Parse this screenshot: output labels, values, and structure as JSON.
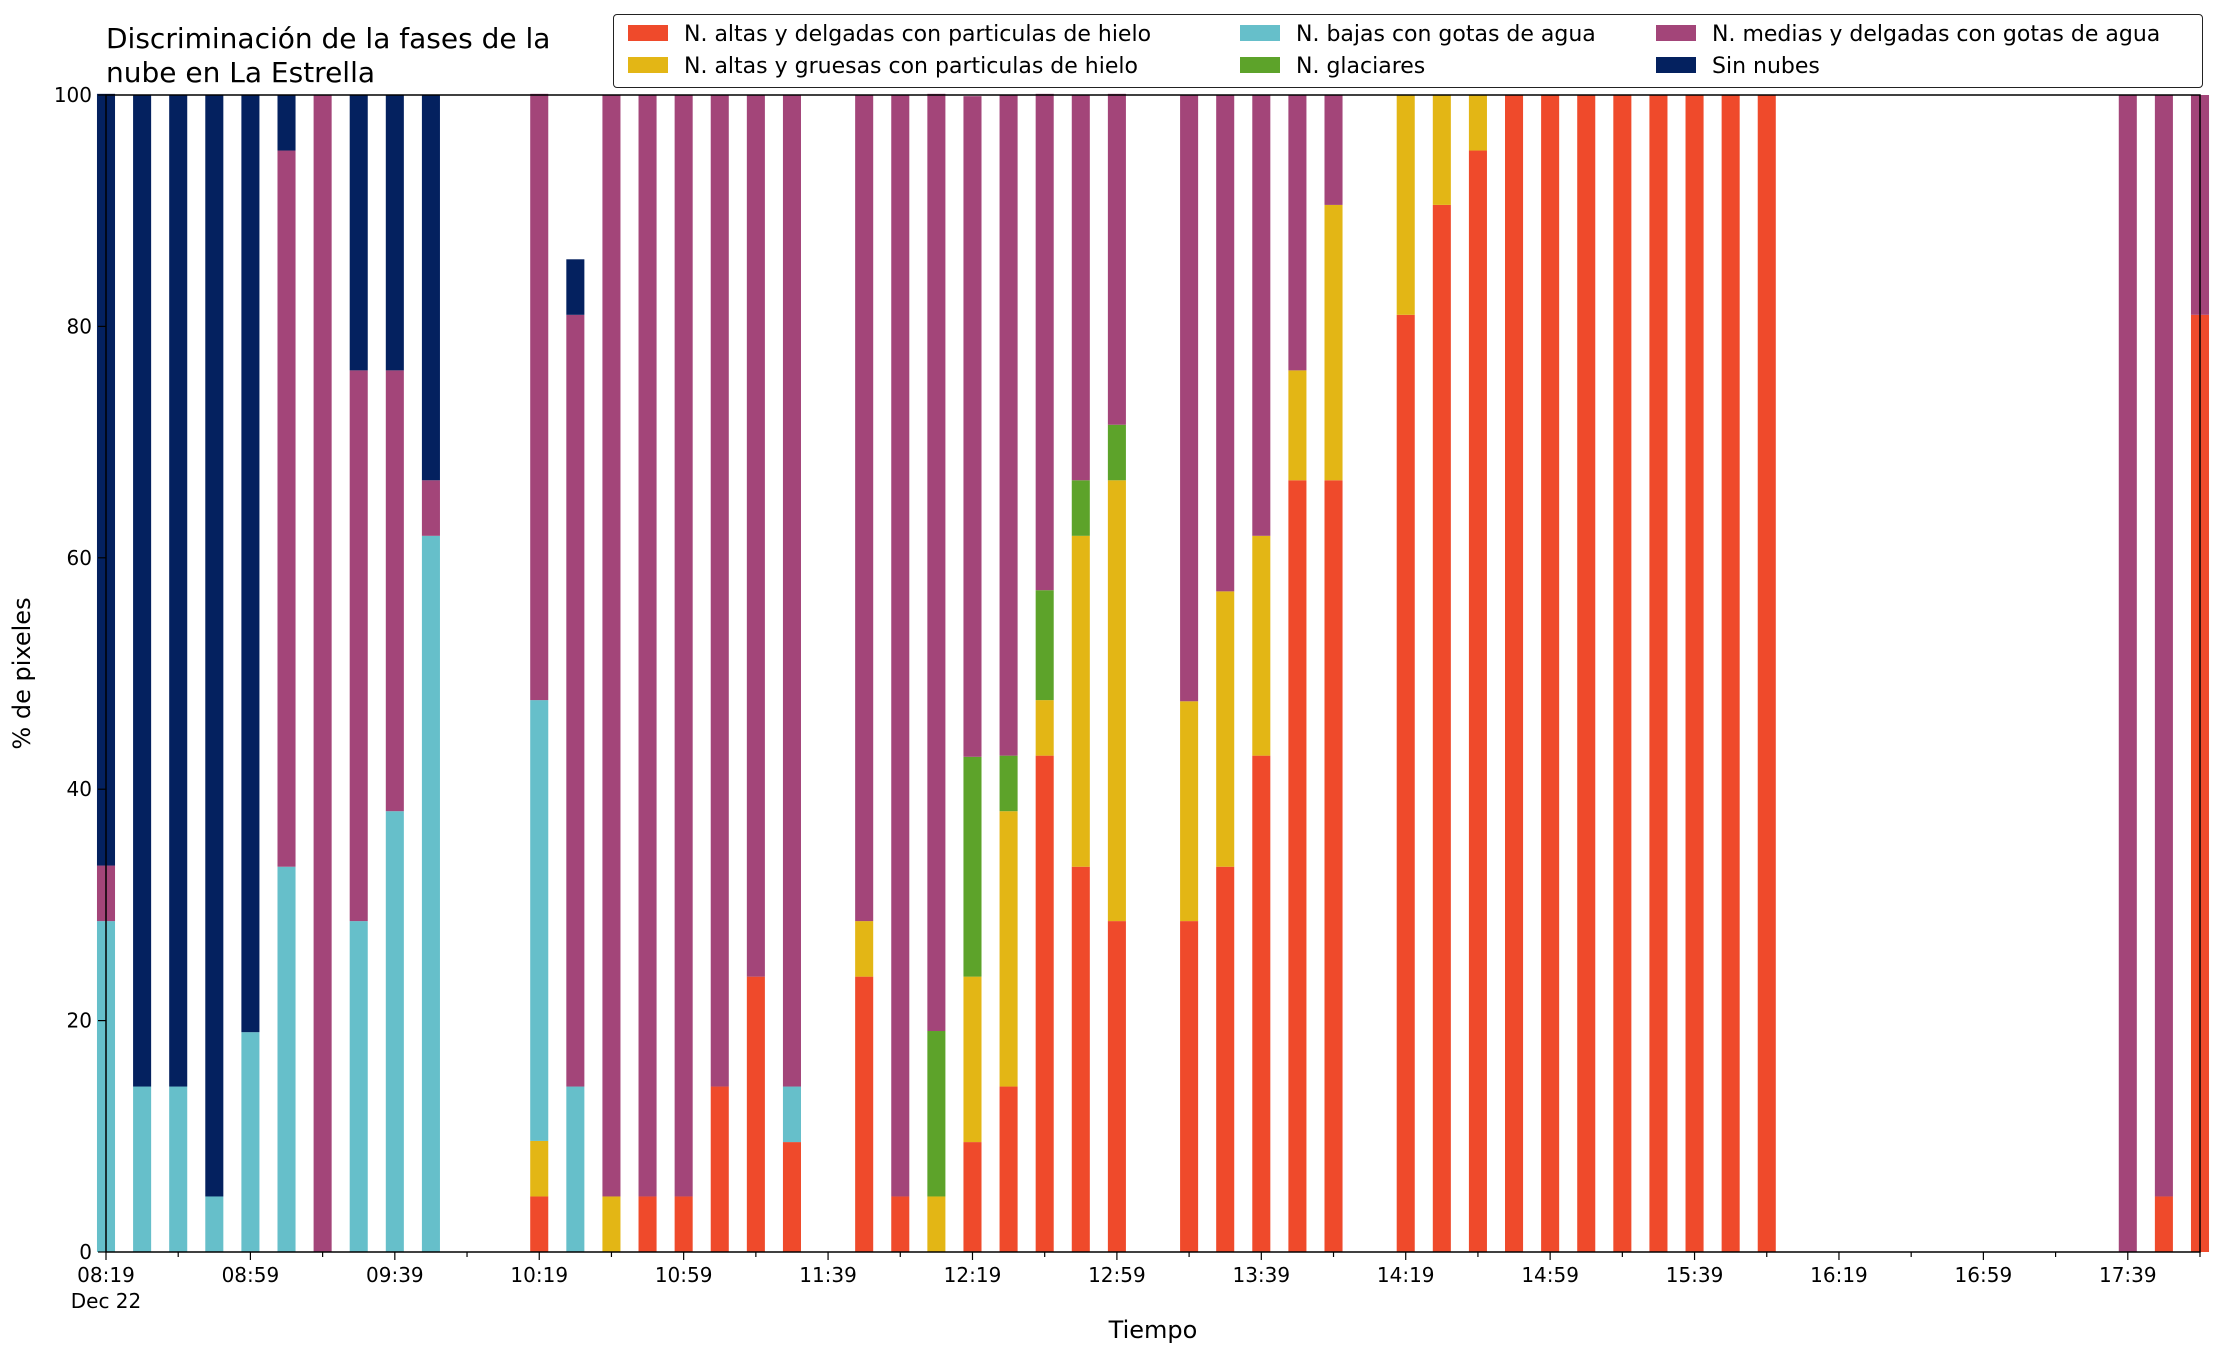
{
  "chart_data": {
    "type": "bar",
    "stacked": true,
    "title": "Discriminación de la fases de la\nnube en La Estrella",
    "xlabel": "Tiempo",
    "ylabel": "% de pixeles",
    "ylim": [
      0,
      100
    ],
    "yticks": [
      0,
      20,
      40,
      60,
      80,
      100
    ],
    "grid": false,
    "legend_placement": "top-right",
    "xtick_labels": [
      "08:19",
      "08:59",
      "09:39",
      "10:19",
      "10:59",
      "11:39",
      "12:19",
      "12:59",
      "13:39",
      "14:19",
      "14:59",
      "15:39",
      "16:19",
      "16:59",
      "17:39"
    ],
    "xtick_sublabel": "Dec 22",
    "x_start": "08:19",
    "x_end": "17:59",
    "x": [
      "08:19",
      "08:29",
      "08:39",
      "08:49",
      "08:59",
      "09:09",
      "09:19",
      "09:29",
      "09:39",
      "09:49",
      "09:59",
      "10:09",
      "10:19",
      "10:29",
      "10:39",
      "10:49",
      "10:59",
      "11:09",
      "11:19",
      "11:29",
      "11:39",
      "11:49",
      "11:59",
      "12:09",
      "12:19",
      "12:29",
      "12:39",
      "12:49",
      "12:59",
      "13:09",
      "13:19",
      "13:29",
      "13:39",
      "13:49",
      "13:59",
      "14:09",
      "14:19",
      "14:29",
      "14:39",
      "14:49",
      "14:59",
      "15:09",
      "15:19",
      "15:29",
      "15:39",
      "15:49",
      "15:59",
      "16:09",
      "16:19",
      "16:29",
      "16:39",
      "16:49",
      "16:59",
      "17:09",
      "17:19",
      "17:29",
      "17:39",
      "17:49",
      "17:59"
    ],
    "series": [
      {
        "name": "N. altas y delgadas con particulas de hielo",
        "color": "#ef4a2b",
        "values": [
          0,
          0,
          0,
          0,
          0,
          0,
          0,
          0,
          0,
          0,
          0,
          0,
          4.8,
          0,
          0,
          4.8,
          4.8,
          14.3,
          23.8,
          9.5,
          0,
          23.8,
          4.8,
          0,
          9.5,
          14.3,
          42.9,
          33.3,
          28.6,
          0,
          28.6,
          33.3,
          42.9,
          66.7,
          66.7,
          0,
          81,
          90.5,
          95.2,
          100,
          100,
          100,
          100,
          100,
          100,
          100,
          100,
          0,
          0,
          0,
          0,
          0,
          0,
          0,
          0,
          0,
          0,
          4.8,
          81
        ]
      },
      {
        "name": "N. altas y gruesas con particulas de hielo",
        "color": "#e3b615",
        "values": [
          0,
          0,
          0,
          0,
          0,
          0,
          0,
          0,
          0,
          0,
          0,
          0,
          4.8,
          0,
          4.8,
          0,
          0,
          0,
          0,
          0,
          0,
          4.8,
          0,
          4.8,
          14.3,
          23.8,
          4.8,
          28.6,
          38.1,
          0,
          19,
          23.8,
          19,
          9.5,
          23.8,
          0,
          19,
          9.5,
          4.8,
          0,
          0,
          0,
          0,
          0,
          0,
          0,
          0,
          0,
          0,
          0,
          0,
          0,
          0,
          0,
          0,
          0,
          0,
          0,
          0
        ]
      },
      {
        "name": "N. bajas con gotas de agua",
        "color": "#66bfca",
        "values": [
          28.6,
          14.3,
          14.3,
          4.8,
          19,
          33.3,
          0,
          28.6,
          38.1,
          61.9,
          0,
          0,
          38.1,
          14.3,
          0,
          0,
          0,
          0,
          0,
          4.8,
          0,
          0,
          0,
          0,
          0,
          0,
          0,
          0,
          0,
          0,
          0,
          0,
          0,
          0,
          0,
          0,
          0,
          0,
          0,
          0,
          0,
          0,
          0,
          0,
          0,
          0,
          0,
          0,
          0,
          0,
          0,
          0,
          0,
          0,
          0,
          0,
          0,
          0,
          0
        ]
      },
      {
        "name": "N. glaciares",
        "color": "#5da32a",
        "values": [
          0,
          0,
          0,
          0,
          0,
          0,
          0,
          0,
          0,
          0,
          0,
          0,
          0,
          0,
          0,
          0,
          0,
          0,
          0,
          0,
          0,
          0,
          0,
          14.3,
          19,
          4.8,
          9.5,
          4.8,
          4.8,
          0,
          0,
          0,
          0,
          0,
          0,
          0,
          0,
          0,
          0,
          0,
          0,
          0,
          0,
          0,
          0,
          0,
          0,
          0,
          0,
          0,
          0,
          0,
          0,
          0,
          0,
          0,
          0,
          0,
          0
        ]
      },
      {
        "name": "N. medias y delgadas con gotas de agua",
        "color": "#a34579",
        "values": [
          4.8,
          0,
          0,
          0,
          0,
          61.9,
          100,
          47.6,
          38.1,
          4.8,
          0,
          0,
          52.4,
          66.7,
          95.2,
          95.2,
          95.2,
          85.7,
          76.2,
          85.7,
          0,
          71.4,
          95.2,
          81,
          57.1,
          57.1,
          42.9,
          33.3,
          28.6,
          0,
          52.4,
          42.9,
          38.1,
          23.8,
          9.5,
          0,
          0,
          0,
          0,
          0,
          0,
          0,
          0,
          0,
          0,
          0,
          0,
          0,
          0,
          0,
          0,
          0,
          0,
          0,
          0,
          0,
          100,
          95.2,
          19
        ]
      },
      {
        "name": "Sin nubes",
        "color": "#04215f",
        "values": [
          66.7,
          85.7,
          85.7,
          95.2,
          81,
          4.8,
          0,
          23.8,
          23.8,
          33.3,
          0,
          0,
          0,
          4.8,
          0,
          0,
          0,
          0,
          0,
          0,
          0,
          0,
          0,
          0,
          0,
          0,
          0,
          0,
          0,
          0,
          0,
          0,
          0,
          0,
          0,
          0,
          0,
          0,
          0,
          0,
          0,
          0,
          0,
          0,
          0,
          0,
          0,
          0,
          0,
          0,
          0,
          0,
          0,
          0,
          0,
          0,
          0,
          0,
          0
        ]
      }
    ]
  },
  "legend": {
    "items": [
      {
        "label": "N. altas y delgadas con particulas de hielo",
        "color": "#ef4a2b"
      },
      {
        "label": "N. bajas con gotas de agua",
        "color": "#66bfca"
      },
      {
        "label": "N. medias y delgadas con gotas de agua",
        "color": "#a34579"
      },
      {
        "label": "N. altas y gruesas con particulas de hielo",
        "color": "#e3b615"
      },
      {
        "label": "N. glaciares",
        "color": "#5da32a"
      },
      {
        "label": "Sin nubes",
        "color": "#04215f"
      }
    ]
  }
}
